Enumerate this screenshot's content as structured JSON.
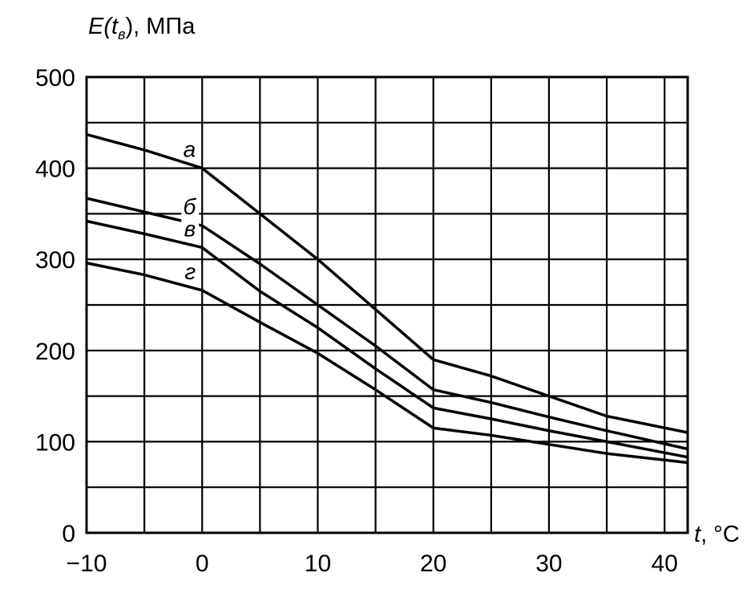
{
  "chart_data": {
    "type": "line",
    "title": "",
    "ylabel": "E(t_в), МПа",
    "ylabel_parts": {
      "e": "E",
      "open": "(t",
      "sub": "в",
      "close": "), МПа"
    },
    "xlabel": "t, °C",
    "xlabel_parts": {
      "t": "t",
      "unit": ", °C"
    },
    "xlim": [
      -10,
      42
    ],
    "ylim": [
      0,
      500
    ],
    "x_ticks": [
      -10,
      0,
      10,
      20,
      30,
      40
    ],
    "x_tick_labels": [
      "−10",
      "0",
      "10",
      "20",
      "30",
      "40"
    ],
    "y_ticks": [
      0,
      100,
      200,
      300,
      400,
      500
    ],
    "y_tick_labels": [
      "0",
      "100",
      "200",
      "300",
      "400",
      "500"
    ],
    "grid": true,
    "grid_x": [
      -10,
      -5,
      0,
      5,
      10,
      15,
      20,
      25,
      30,
      35,
      40
    ],
    "grid_y": [
      50,
      100,
      150,
      200,
      250,
      300,
      350,
      400,
      450
    ],
    "series": [
      {
        "name": "а",
        "x": [
          -10,
          -5,
          0,
          5,
          10,
          15,
          20,
          25,
          30,
          35,
          42
        ],
        "y": [
          437,
          420,
          400,
          350,
          300,
          245,
          190,
          172,
          150,
          128,
          110
        ]
      },
      {
        "name": "б",
        "x": [
          -10,
          -5,
          0,
          5,
          10,
          15,
          20,
          25,
          30,
          35,
          42
        ],
        "y": [
          367,
          352,
          337,
          295,
          250,
          205,
          157,
          143,
          127,
          112,
          92
        ]
      },
      {
        "name": "в",
        "x": [
          -10,
          -5,
          0,
          5,
          10,
          15,
          20,
          25,
          30,
          35,
          42
        ],
        "y": [
          342,
          328,
          313,
          265,
          225,
          180,
          137,
          125,
          112,
          100,
          83
        ]
      },
      {
        "name": "г",
        "x": [
          -10,
          -5,
          0,
          5,
          10,
          15,
          20,
          25,
          30,
          35,
          42
        ],
        "y": [
          296,
          283,
          266,
          231,
          197,
          157,
          115,
          107,
          97,
          87,
          77
        ]
      }
    ]
  }
}
